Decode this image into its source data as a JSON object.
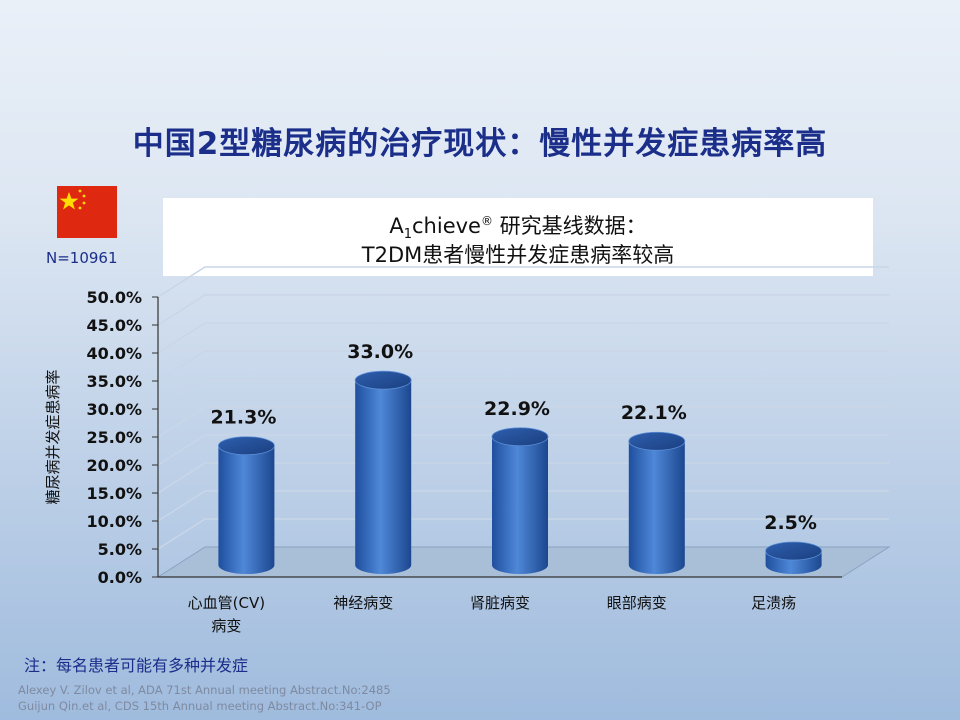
{
  "title": "中国2型糖尿病的治疗现状：慢性并发症患病率高",
  "subtitle": {
    "a": "A",
    "sub": "1",
    "chieve": "chieve",
    "reg": "®",
    "suffix": " 研究基线数据：",
    "line2": "T2DM患者慢性并发症患病率较高"
  },
  "n_label": "N=10961",
  "flag_icon": "china-flag-icon",
  "note": "注：每名患者可能有多种并发症",
  "references": [
    "Alexey V. Zilov  et al, ADA 71st Annual meeting Abstract.No:2485",
    "Guijun Qin.et al, CDS 15th Annual meeting Abstract.No:341-OP"
  ],
  "colors": {
    "title": "#1a2e8a",
    "bar": "#3a6fc0",
    "floor": "#a9bfd8"
  },
  "chart_data": {
    "type": "bar",
    "categories": [
      "心血管(CV)|病变",
      "神经病变",
      "肾脏病变",
      "眼部病变",
      "足溃疡"
    ],
    "values": [
      21.3,
      33.0,
      22.9,
      22.1,
      2.5
    ],
    "value_labels": [
      "21.3%",
      "33.0%",
      "22.9%",
      "22.1%",
      "2.5%"
    ],
    "ylabel": "糖尿病并发症患病率",
    "ylim": [
      0,
      50
    ],
    "yticks": [
      "0.0%",
      "5.0%",
      "10.0%",
      "15.0%",
      "20.0%",
      "25.0%",
      "30.0%",
      "35.0%",
      "40.0%",
      "45.0%",
      "50.0%"
    ],
    "grid": true
  }
}
